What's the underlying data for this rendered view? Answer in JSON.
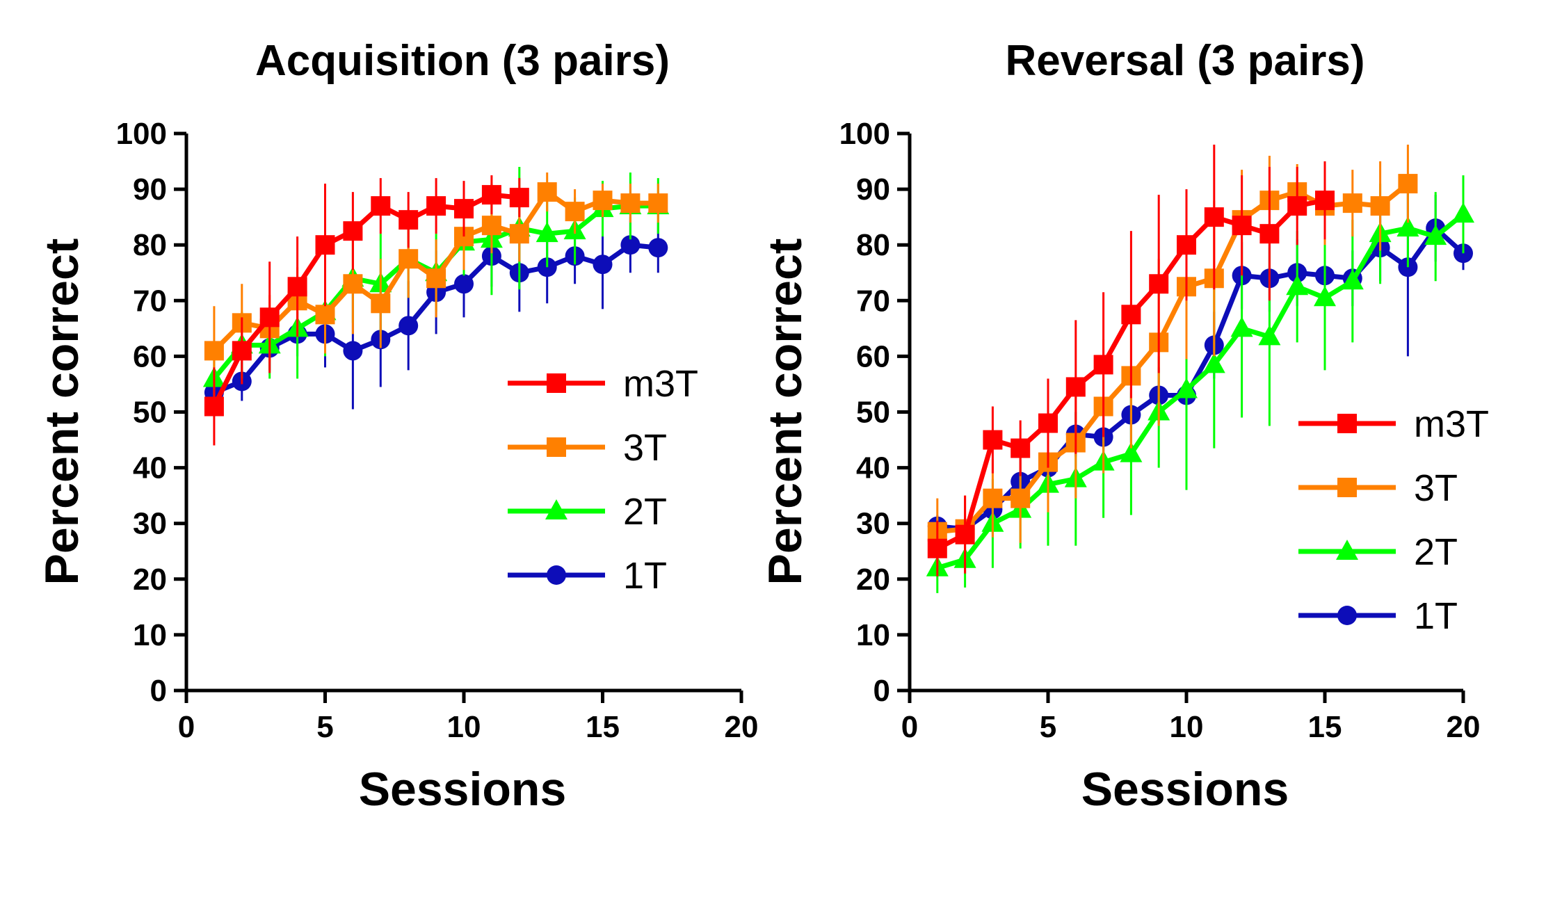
{
  "chart_data": [
    {
      "type": "line",
      "title": "Acquisition (3 pairs)",
      "xlabel": "Sessions",
      "ylabel": "Percent correct",
      "xlim": [
        0,
        20
      ],
      "ylim": [
        0,
        100
      ],
      "xticks": [
        "0",
        "5",
        "10",
        "15",
        "20"
      ],
      "yticks": [
        "0",
        "10",
        "20",
        "30",
        "40",
        "50",
        "60",
        "70",
        "80",
        "90",
        "100"
      ],
      "grid": false,
      "legend_position": "right-middle",
      "series": [
        {
          "name": "m3T",
          "color": "#ff0000",
          "marker": "square",
          "x": [
            1,
            2,
            3,
            4,
            5,
            6,
            7,
            8,
            9,
            10,
            11,
            12
          ],
          "y": [
            51,
            61,
            67,
            72.5,
            80,
            82.5,
            87,
            84.5,
            87,
            86.5,
            89,
            88.5
          ],
          "err": [
            7,
            6,
            10,
            9,
            11,
            7,
            5,
            5,
            5,
            5,
            3.5,
            3.5
          ]
        },
        {
          "name": "3T",
          "color": "#ff8000",
          "marker": "square",
          "x": [
            1,
            2,
            3,
            4,
            5,
            6,
            7,
            8,
            9,
            10,
            11,
            12,
            13,
            14,
            15,
            16,
            17
          ],
          "y": [
            61,
            66,
            65,
            70,
            67.5,
            73,
            69.5,
            77.5,
            74,
            81.5,
            83.5,
            82,
            89.5,
            86,
            88,
            87.5,
            87.5
          ],
          "err": [
            8,
            7,
            6,
            6,
            7,
            9,
            8,
            7,
            7,
            6,
            5,
            5,
            3.5,
            4,
            3,
            3.5,
            3.5
          ]
        },
        {
          "name": "2T",
          "color": "#00ff00",
          "marker": "triangle",
          "x": [
            1,
            2,
            3,
            4,
            5,
            6,
            7,
            8,
            9,
            10,
            11,
            12,
            13,
            14,
            15,
            16,
            17
          ],
          "y": [
            56,
            62,
            62,
            65,
            68,
            74,
            73,
            77.5,
            75,
            80.5,
            81,
            83,
            82,
            82.5,
            86.5,
            87,
            87
          ],
          "err": [
            4,
            6,
            6,
            9,
            8,
            8,
            9,
            7,
            7,
            6,
            10,
            11,
            6,
            6,
            5,
            6,
            5
          ]
        },
        {
          "name": "1T",
          "color": "#0d0db8",
          "marker": "circle",
          "x": [
            1,
            2,
            3,
            4,
            5,
            6,
            7,
            8,
            9,
            10,
            11,
            12,
            13,
            14,
            15,
            16,
            17
          ],
          "y": [
            53.5,
            55.5,
            61.5,
            64,
            64,
            61,
            63,
            65.5,
            71.5,
            73,
            78,
            75,
            76,
            78,
            76.5,
            80,
            79.5
          ],
          "err": [
            3,
            3.5,
            4,
            4,
            6,
            10.5,
            8.5,
            8,
            7.5,
            6,
            5.5,
            7,
            6.5,
            5,
            8,
            5,
            4.5
          ]
        }
      ],
      "legend": [
        "m3T",
        "3T",
        "2T",
        "1T"
      ]
    },
    {
      "type": "line",
      "title": "Reversal (3 pairs)",
      "xlabel": "Sessions",
      "ylabel": "Percent correct",
      "xlim": [
        0,
        20
      ],
      "ylim": [
        0,
        100
      ],
      "xticks": [
        "0",
        "5",
        "10",
        "15",
        "20"
      ],
      "yticks": [
        "0",
        "10",
        "20",
        "30",
        "40",
        "50",
        "60",
        "70",
        "80",
        "90",
        "100"
      ],
      "grid": false,
      "legend_position": "right-middle",
      "series": [
        {
          "name": "m3T",
          "color": "#ff0000",
          "marker": "square",
          "x": [
            1,
            2,
            3,
            4,
            5,
            6,
            7,
            8,
            9,
            10,
            11,
            12,
            13,
            14,
            15
          ],
          "y": [
            25.5,
            28,
            45,
            43.5,
            48,
            54.5,
            58.5,
            67.5,
            73,
            80,
            85,
            83.5,
            82,
            87,
            88
          ],
          "err": [
            5,
            7,
            6,
            5,
            8,
            12,
            13,
            15,
            16,
            10,
            13,
            9,
            12,
            7,
            7
          ]
        },
        {
          "name": "3T",
          "color": "#ff8000",
          "marker": "square",
          "x": [
            1,
            2,
            3,
            4,
            5,
            6,
            7,
            8,
            9,
            10,
            11,
            12,
            13,
            14,
            15,
            16,
            17,
            18
          ],
          "y": [
            28.5,
            29,
            34.5,
            34.5,
            41,
            44.5,
            51,
            56.5,
            62.5,
            72.5,
            74,
            84.5,
            88,
            89.5,
            87,
            87.5,
            87,
            91
          ],
          "err": [
            6,
            6,
            7,
            8,
            9,
            10,
            12,
            13,
            15,
            13,
            14,
            9,
            8,
            5,
            7,
            6,
            8,
            7
          ]
        },
        {
          "name": "2T",
          "color": "#00ff00",
          "marker": "triangle",
          "x": [
            1,
            2,
            3,
            4,
            5,
            6,
            7,
            8,
            9,
            10,
            11,
            12,
            13,
            14,
            15,
            16,
            17,
            18,
            19,
            20
          ],
          "y": [
            22,
            23.5,
            30,
            32.5,
            37,
            38,
            41,
            42.5,
            50,
            54,
            58.5,
            65,
            63.5,
            72.5,
            70.5,
            73.5,
            82,
            83,
            81.5,
            85.5
          ],
          "err": [
            4.5,
            5,
            8,
            7,
            11,
            12,
            10,
            11,
            10,
            18,
            15,
            16,
            16,
            10,
            13,
            11,
            9,
            7,
            8,
            7
          ]
        },
        {
          "name": "1T",
          "color": "#0d0db8",
          "marker": "circle",
          "x": [
            1,
            2,
            3,
            4,
            5,
            6,
            7,
            8,
            9,
            10,
            11,
            12,
            13,
            14,
            15,
            16,
            17,
            18,
            19,
            20
          ],
          "y": [
            29.5,
            29,
            32.5,
            37.5,
            40,
            46,
            45.5,
            49.5,
            53,
            53,
            62,
            74.5,
            74,
            75,
            74.5,
            74,
            79.5,
            76,
            83,
            78.5
          ],
          "err": [
            2,
            2,
            3,
            4,
            4,
            4,
            4,
            5,
            5,
            5,
            6,
            6,
            6,
            6,
            6,
            5,
            6,
            16,
            6,
            3
          ]
        }
      ],
      "legend": [
        "m3T",
        "3T",
        "2T",
        "1T"
      ]
    }
  ]
}
